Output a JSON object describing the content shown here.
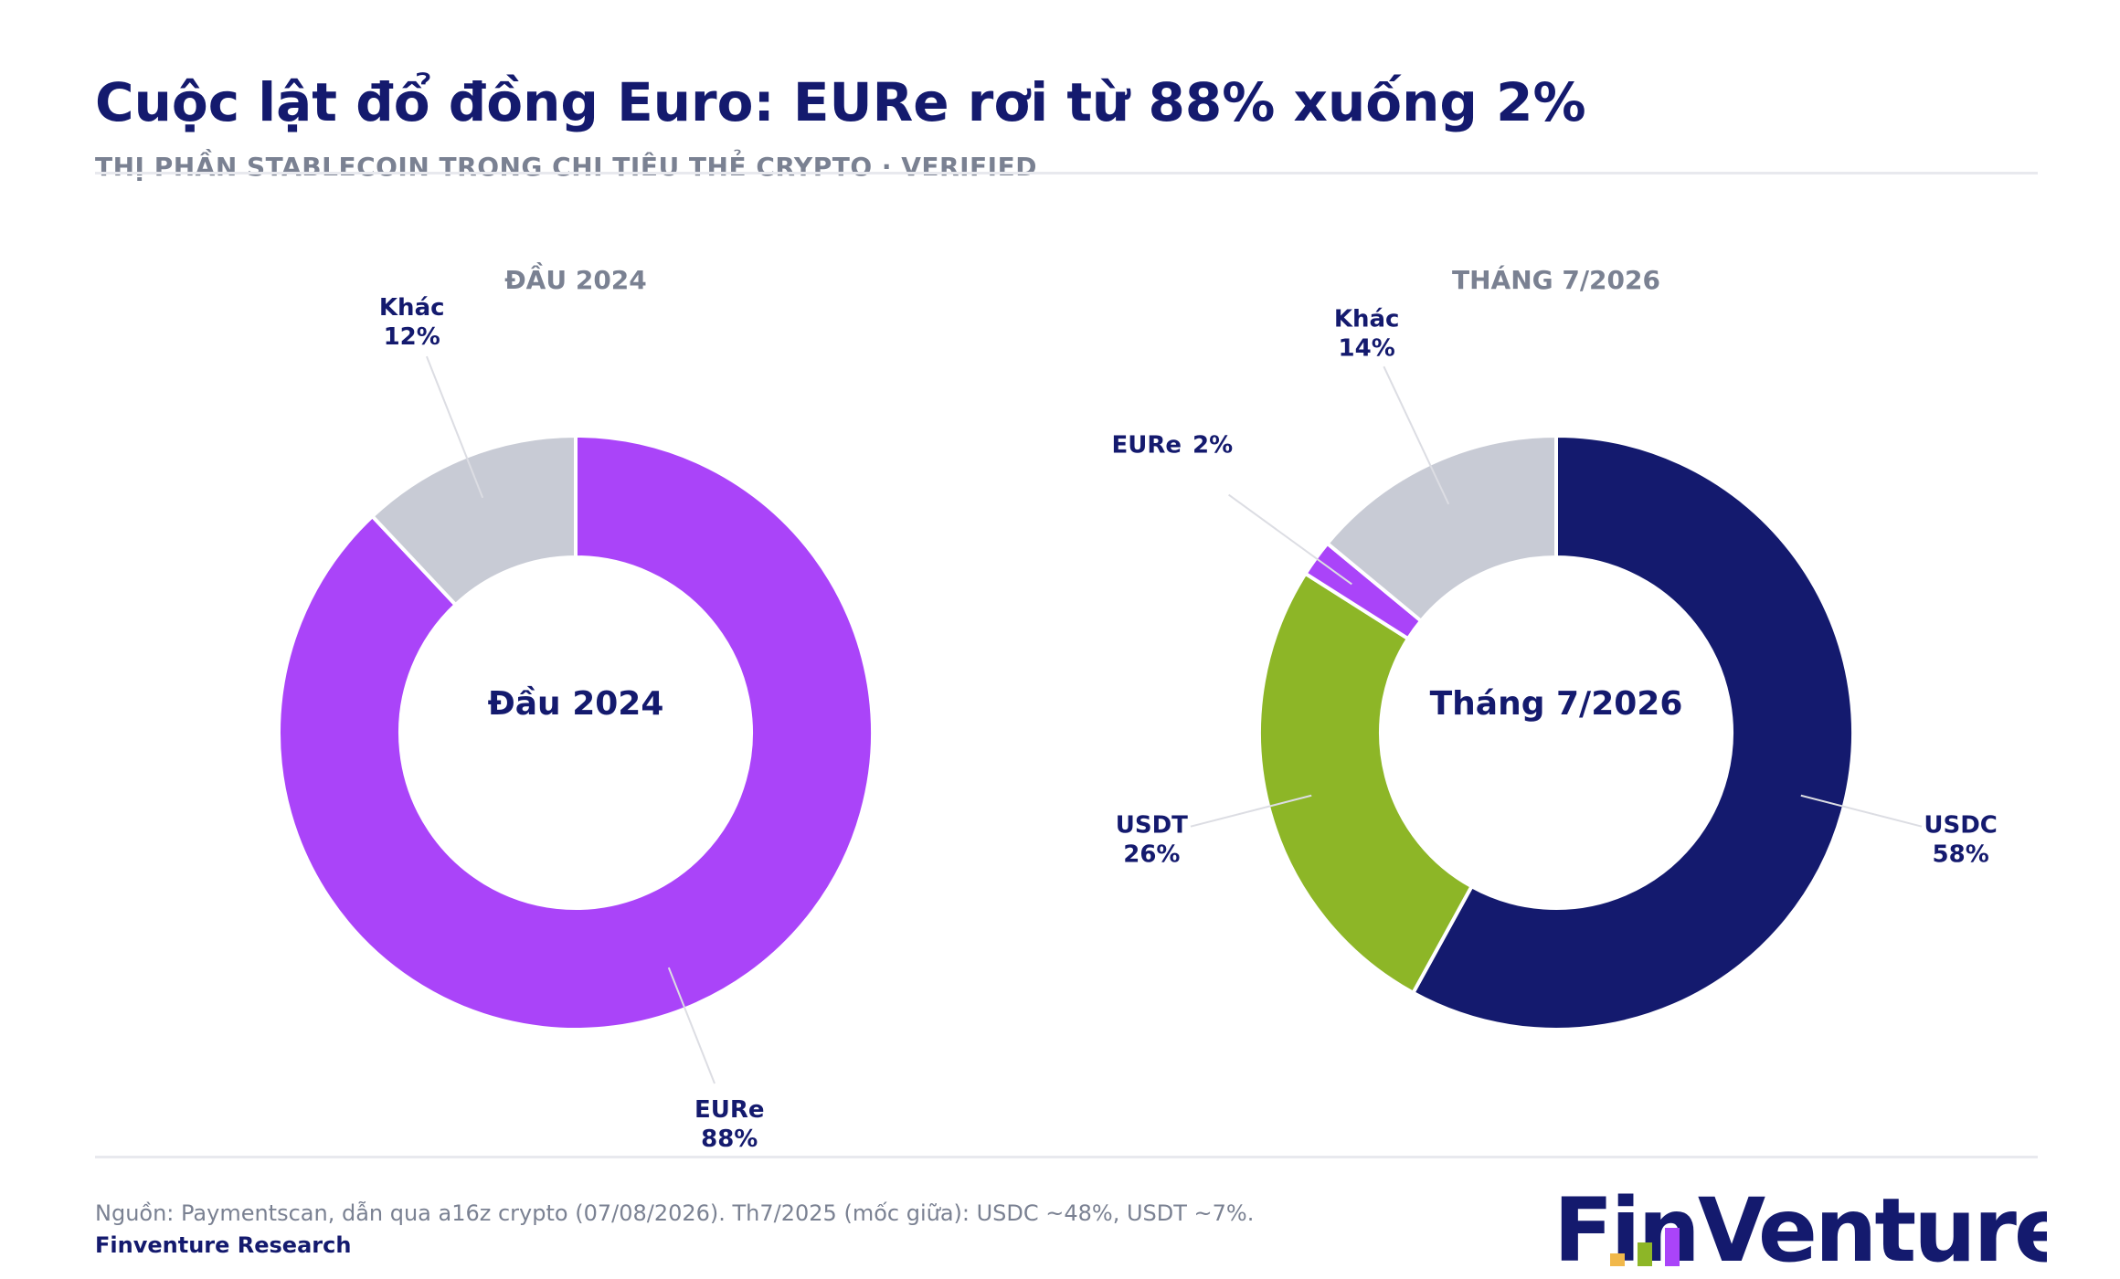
{
  "header": {
    "title": "Cuộc lật đổ đồng Euro: EURe rơi từ 88% xuống 2%",
    "subtitle": "THỊ PHẦN STABLECOIN TRONG CHI TIÊU THẺ CRYPTO · VERIFIED"
  },
  "footer": {
    "source": "Nguồn: Paymentscan, dẫn qua a16z crypto (07/08/2026). Th7/2025 (mốc giữa): USDC ~48%, USDT ~7%.",
    "brand": "Finventure Research",
    "logo_text": "FinVenture"
  },
  "colors": {
    "EURe": "#aa44f9",
    "USDC": "#141a6e",
    "USDT": "#8db627",
    "Khác": "#c8cbd5",
    "title": "#141a6e",
    "muted": "#7a8192"
  },
  "chart_data": [
    {
      "type": "pie",
      "style": "donut",
      "title": "ĐẦU 2024",
      "center_label": "Đầu 2024",
      "slices": [
        {
          "label": "EURe",
          "value": 88,
          "value_label": "88%"
        },
        {
          "label": "Khác",
          "value": 12,
          "value_label": "12%"
        }
      ]
    },
    {
      "type": "pie",
      "style": "donut",
      "title": "THÁNG 7/2026",
      "center_label": "Tháng 7/2026",
      "slices": [
        {
          "label": "USDC",
          "value": 58,
          "value_label": "58%"
        },
        {
          "label": "USDT",
          "value": 26,
          "value_label": "26%"
        },
        {
          "label": "EURe",
          "value": 2,
          "value_label": "2%"
        },
        {
          "label": "Khác",
          "value": 14,
          "value_label": "14%"
        }
      ]
    }
  ]
}
